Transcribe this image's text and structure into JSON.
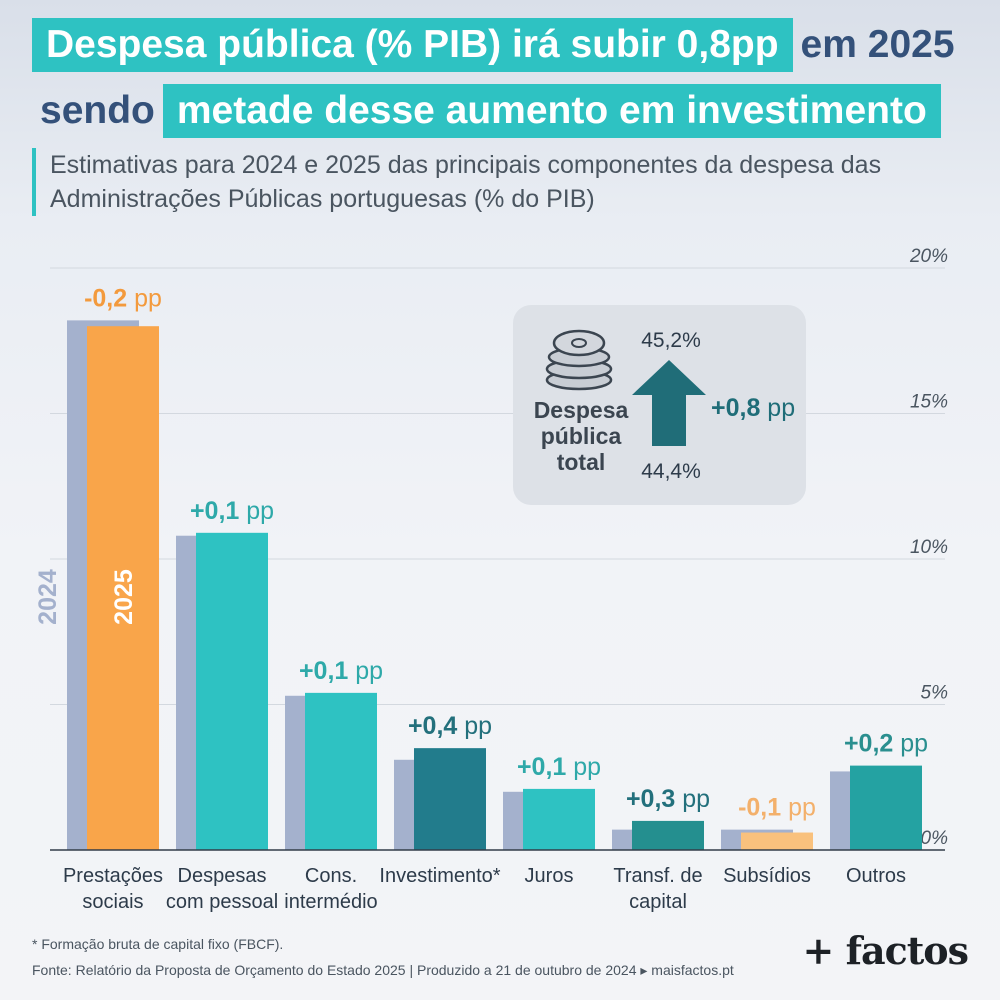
{
  "title": {
    "line1_highlight": "Despesa pública (% PIB) irá subir 0,8pp",
    "line1_plain": "em 2025",
    "line2_plain": "sendo",
    "line2_highlight": "metade desse aumento em investimento"
  },
  "subtitle": "Estimativas para 2024 e 2025 das principais componentes da despesa das Administrações Públicas portuguesas (% do PIB)",
  "chart_data": {
    "type": "bar",
    "categories": [
      [
        "Prestações",
        "sociais"
      ],
      [
        "Despesas",
        "com pessoal"
      ],
      [
        "Cons.",
        "intermédio"
      ],
      [
        "Investimento*"
      ],
      [
        "Juros"
      ],
      [
        "Transf. de",
        "capital"
      ],
      [
        "Subsídios"
      ],
      [
        "Outros"
      ]
    ],
    "series": [
      {
        "name": "2024",
        "values": [
          18.2,
          10.8,
          5.3,
          3.1,
          2.0,
          0.7,
          0.7,
          2.7
        ]
      },
      {
        "name": "2025",
        "values": [
          18.0,
          10.9,
          5.4,
          3.5,
          2.1,
          1.0,
          0.6,
          2.9
        ]
      }
    ],
    "changes": [
      "-0,2 pp",
      "+0,1 pp",
      "+0,1 pp",
      "+0,4 pp",
      "+0,1 pp",
      "+0,3 pp",
      "-0,1 pp",
      "+0,2 pp"
    ],
    "colors_2025": [
      "#f9a54a",
      "#2ec2c2",
      "#2ec2c2",
      "#227c8c",
      "#2ec2c2",
      "#248f8f",
      "#f9c17d",
      "#24a2a2"
    ],
    "change_colors": [
      "#f39a3d",
      "#2ea9a9",
      "#2ea9a9",
      "#23707c",
      "#2ea9a9",
      "#23707c",
      "#f3b06b",
      "#2a8f8f"
    ],
    "color_2024": "#a4b1cd",
    "y_ticks": [
      "0%",
      "5%",
      "10%",
      "15%",
      "20%"
    ],
    "ylim": [
      0,
      20
    ],
    "grid": true,
    "series_labels": {
      "a": "2024",
      "b": "2025"
    }
  },
  "info_box": {
    "label_lines": [
      "Despesa",
      "pública",
      "total"
    ],
    "value_2025": "45,2%",
    "value_2024": "44,4%",
    "change_bold": "+0,8",
    "change_unit": " pp",
    "arrow_color": "#206d78",
    "icon": "coins-icon"
  },
  "footnote": "* Formação bruta de capital fixo (FBCF).",
  "source": "Fonte: Relatório da Proposta de Orçamento do Estado 2025 | Produzido a 21 de outubro de 2024 ▸ maisfactos.pt",
  "brand": "+ factos"
}
